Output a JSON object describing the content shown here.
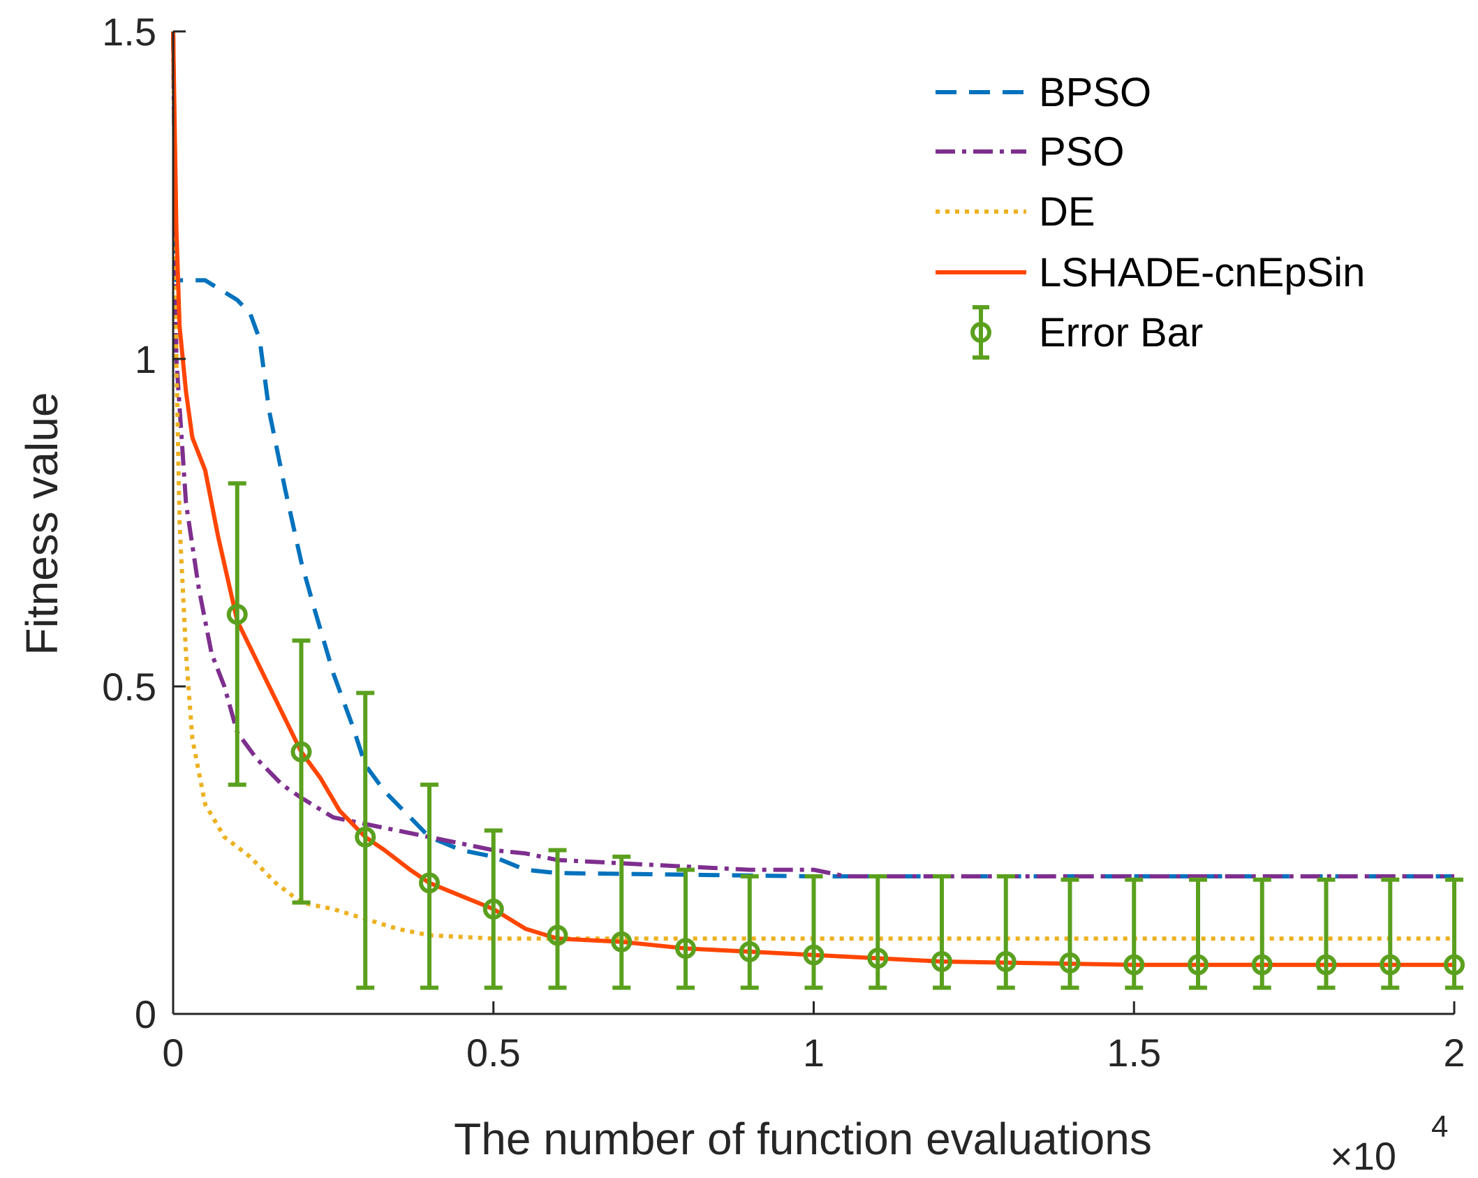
{
  "chart_data": {
    "type": "line",
    "xlabel": "The number of function evaluations",
    "ylabel": "Fitness value",
    "x_exponent_label": "×10",
    "x_exponent_power": "4",
    "xlim": [
      0,
      2
    ],
    "ylim": [
      0,
      1.5
    ],
    "xticks": [
      0,
      0.5,
      1,
      1.5,
      2
    ],
    "xtick_labels": [
      "0",
      "0.5",
      "1",
      "1.5",
      "2"
    ],
    "yticks": [
      0,
      0.5,
      1,
      1.5
    ],
    "ytick_labels": [
      "0",
      "0.5",
      "1",
      "1.5"
    ],
    "legend_position": "top-right",
    "series": [
      {
        "name": "BPSO",
        "color": "#0072BD",
        "style": "dashed",
        "x": [
          0,
          0.005,
          0.05,
          0.1,
          0.12,
          0.135,
          0.15,
          0.175,
          0.2,
          0.22,
          0.25,
          0.28,
          0.3,
          0.33,
          0.37,
          0.4,
          0.45,
          0.5,
          0.55,
          0.6,
          1.0,
          1.5,
          2.0
        ],
        "y": [
          1.5,
          1.12,
          1.12,
          1.09,
          1.07,
          1.03,
          0.92,
          0.8,
          0.69,
          0.62,
          0.52,
          0.44,
          0.38,
          0.34,
          0.3,
          0.27,
          0.25,
          0.24,
          0.22,
          0.215,
          0.21,
          0.21,
          0.21
        ]
      },
      {
        "name": "PSO",
        "color": "#7E2F8E",
        "style": "dashdot",
        "x": [
          0,
          0.005,
          0.02,
          0.04,
          0.06,
          0.08,
          0.1,
          0.13,
          0.17,
          0.2,
          0.25,
          0.3,
          0.35,
          0.4,
          0.45,
          0.5,
          0.55,
          0.6,
          0.7,
          0.8,
          0.9,
          1.0,
          1.05,
          1.5,
          1.75,
          2.0
        ],
        "y": [
          1.5,
          1.0,
          0.78,
          0.65,
          0.55,
          0.5,
          0.43,
          0.39,
          0.35,
          0.33,
          0.3,
          0.29,
          0.28,
          0.27,
          0.26,
          0.25,
          0.245,
          0.235,
          0.23,
          0.225,
          0.22,
          0.22,
          0.21,
          0.21,
          0.21,
          0.21
        ]
      },
      {
        "name": "DE",
        "color": "#EDB120",
        "style": "dotted",
        "x": [
          0,
          0.005,
          0.01,
          0.02,
          0.03,
          0.05,
          0.08,
          0.12,
          0.16,
          0.2,
          0.25,
          0.3,
          0.35,
          0.4,
          0.5,
          0.6,
          2.0
        ],
        "y": [
          1.5,
          1.0,
          0.75,
          0.55,
          0.42,
          0.32,
          0.27,
          0.24,
          0.2,
          0.17,
          0.16,
          0.145,
          0.13,
          0.12,
          0.115,
          0.115,
          0.115
        ]
      },
      {
        "name": "LSHADE-cnEpSin",
        "color": "#FF4500",
        "style": "solid",
        "x": [
          0,
          0.005,
          0.01,
          0.02,
          0.03,
          0.05,
          0.07,
          0.1,
          0.125,
          0.15,
          0.175,
          0.2,
          0.23,
          0.26,
          0.3,
          0.33,
          0.37,
          0.4,
          0.45,
          0.5,
          0.55,
          0.6,
          0.7,
          0.8,
          0.9,
          1.0,
          1.2,
          1.5,
          2.0
        ],
        "y": [
          1.5,
          1.2,
          1.05,
          0.95,
          0.88,
          0.83,
          0.73,
          0.6,
          0.55,
          0.5,
          0.45,
          0.4,
          0.36,
          0.31,
          0.27,
          0.25,
          0.22,
          0.2,
          0.18,
          0.16,
          0.13,
          0.115,
          0.11,
          0.1,
          0.095,
          0.09,
          0.08,
          0.075,
          0.075
        ]
      }
    ],
    "error_bars": {
      "name": "Error Bar",
      "color": "#5AA01E",
      "x": [
        0.1,
        0.2,
        0.3,
        0.4,
        0.5,
        0.6,
        0.7,
        0.8,
        0.9,
        1.0,
        1.1,
        1.2,
        1.3,
        1.4,
        1.5,
        1.6,
        1.7,
        1.8,
        1.9,
        2.0
      ],
      "y": [
        0.61,
        0.4,
        0.27,
        0.2,
        0.16,
        0.12,
        0.11,
        0.1,
        0.095,
        0.09,
        0.085,
        0.08,
        0.08,
        0.078,
        0.075,
        0.075,
        0.075,
        0.075,
        0.075,
        0.075
      ],
      "lower": [
        0.35,
        0.17,
        0.04,
        0.04,
        0.04,
        0.04,
        0.04,
        0.04,
        0.04,
        0.04,
        0.04,
        0.04,
        0.04,
        0.04,
        0.04,
        0.04,
        0.04,
        0.04,
        0.04,
        0.04
      ],
      "upper": [
        0.81,
        0.57,
        0.49,
        0.35,
        0.28,
        0.25,
        0.24,
        0.22,
        0.21,
        0.21,
        0.21,
        0.21,
        0.21,
        0.205,
        0.205,
        0.205,
        0.205,
        0.205,
        0.205,
        0.205
      ]
    }
  }
}
